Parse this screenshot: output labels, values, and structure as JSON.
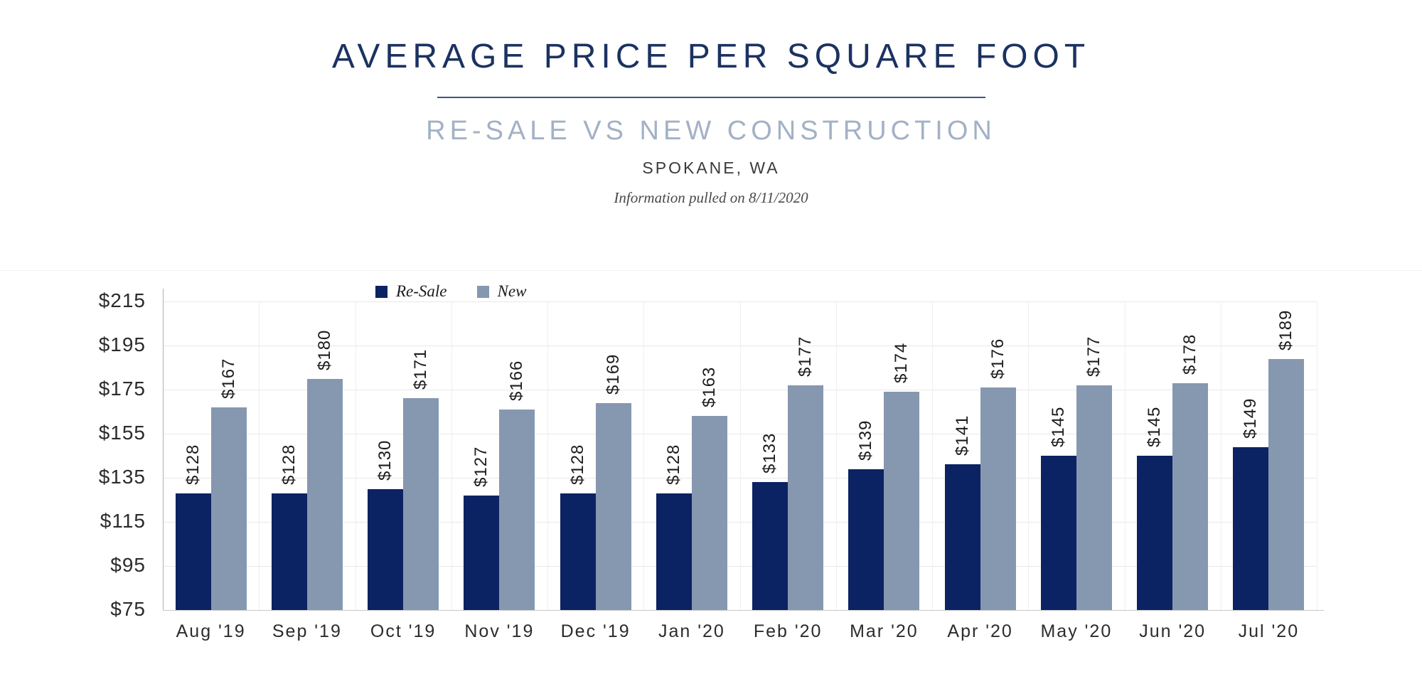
{
  "header": {
    "title": "AVERAGE PRICE PER SQUARE FOOT",
    "subtitle": "RE-SALE VS NEW CONSTRUCTION",
    "location": "SPOKANE, WA",
    "note": "Information pulled on 8/11/2020"
  },
  "colors": {
    "title_navy": "#1b3261",
    "subtitle_blue": "#a2b1c5",
    "divider_navy": "#41567c",
    "gridline": "#e8e8e8",
    "resale_bar": "#0c2363",
    "new_bar": "#8697b0"
  },
  "chart_data": {
    "type": "bar",
    "title": "Average Price Per Square Foot",
    "subtitle": "Re-Sale vs New Construction, Spokane, WA",
    "categories": [
      "Aug '19",
      "Sep '19",
      "Oct '19",
      "Nov '19",
      "Dec '19",
      "Jan '20",
      "Feb '20",
      "Mar '20",
      "Apr '20",
      "May '20",
      "Jun '20",
      "Jul '20"
    ],
    "series": [
      {
        "name": "Re-Sale",
        "color": "#0c2363",
        "values": [
          128,
          128,
          130,
          127,
          128,
          128,
          133,
          139,
          141,
          145,
          145,
          149
        ]
      },
      {
        "name": "New",
        "color": "#8697b0",
        "values": [
          167,
          180,
          171,
          166,
          169,
          163,
          177,
          174,
          176,
          177,
          178,
          189
        ]
      }
    ],
    "xlabel": "",
    "ylabel": "",
    "ylim": [
      75,
      215
    ],
    "y_ticks": [
      75,
      95,
      115,
      135,
      155,
      175,
      195,
      215
    ],
    "tick_prefix": "$",
    "grid": true,
    "legend_position": "top-inside-left",
    "data_labels": "rotated 90 degrees above bars, prefixed with $"
  }
}
